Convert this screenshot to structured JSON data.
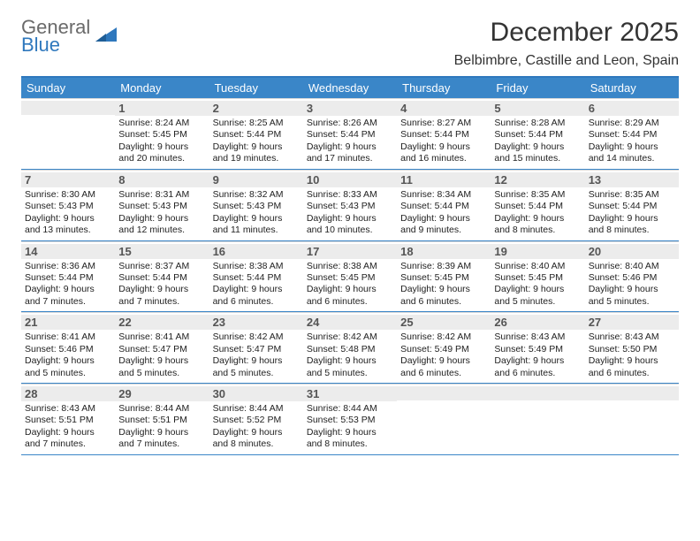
{
  "brand": {
    "line1": "General",
    "line2": "Blue"
  },
  "title": "December 2025",
  "location": "Belbimbre, Castille and Leon, Spain",
  "colors": {
    "header_bar": "#3a86c8",
    "top_border": "#2f78bd",
    "daynum_bg": "#ececec",
    "week_border": "#3a86c8",
    "cell_border": "#d9d9d9",
    "text": "#222222",
    "muted": "#555555",
    "white": "#ffffff"
  },
  "days_of_week": [
    "Sunday",
    "Monday",
    "Tuesday",
    "Wednesday",
    "Thursday",
    "Friday",
    "Saturday"
  ],
  "weeks": [
    [
      {
        "n": "",
        "sr": "",
        "ss": "",
        "dl": ""
      },
      {
        "n": "1",
        "sr": "Sunrise: 8:24 AM",
        "ss": "Sunset: 5:45 PM",
        "dl": "Daylight: 9 hours and 20 minutes."
      },
      {
        "n": "2",
        "sr": "Sunrise: 8:25 AM",
        "ss": "Sunset: 5:44 PM",
        "dl": "Daylight: 9 hours and 19 minutes."
      },
      {
        "n": "3",
        "sr": "Sunrise: 8:26 AM",
        "ss": "Sunset: 5:44 PM",
        "dl": "Daylight: 9 hours and 17 minutes."
      },
      {
        "n": "4",
        "sr": "Sunrise: 8:27 AM",
        "ss": "Sunset: 5:44 PM",
        "dl": "Daylight: 9 hours and 16 minutes."
      },
      {
        "n": "5",
        "sr": "Sunrise: 8:28 AM",
        "ss": "Sunset: 5:44 PM",
        "dl": "Daylight: 9 hours and 15 minutes."
      },
      {
        "n": "6",
        "sr": "Sunrise: 8:29 AM",
        "ss": "Sunset: 5:44 PM",
        "dl": "Daylight: 9 hours and 14 minutes."
      }
    ],
    [
      {
        "n": "7",
        "sr": "Sunrise: 8:30 AM",
        "ss": "Sunset: 5:43 PM",
        "dl": "Daylight: 9 hours and 13 minutes."
      },
      {
        "n": "8",
        "sr": "Sunrise: 8:31 AM",
        "ss": "Sunset: 5:43 PM",
        "dl": "Daylight: 9 hours and 12 minutes."
      },
      {
        "n": "9",
        "sr": "Sunrise: 8:32 AM",
        "ss": "Sunset: 5:43 PM",
        "dl": "Daylight: 9 hours and 11 minutes."
      },
      {
        "n": "10",
        "sr": "Sunrise: 8:33 AM",
        "ss": "Sunset: 5:43 PM",
        "dl": "Daylight: 9 hours and 10 minutes."
      },
      {
        "n": "11",
        "sr": "Sunrise: 8:34 AM",
        "ss": "Sunset: 5:44 PM",
        "dl": "Daylight: 9 hours and 9 minutes."
      },
      {
        "n": "12",
        "sr": "Sunrise: 8:35 AM",
        "ss": "Sunset: 5:44 PM",
        "dl": "Daylight: 9 hours and 8 minutes."
      },
      {
        "n": "13",
        "sr": "Sunrise: 8:35 AM",
        "ss": "Sunset: 5:44 PM",
        "dl": "Daylight: 9 hours and 8 minutes."
      }
    ],
    [
      {
        "n": "14",
        "sr": "Sunrise: 8:36 AM",
        "ss": "Sunset: 5:44 PM",
        "dl": "Daylight: 9 hours and 7 minutes."
      },
      {
        "n": "15",
        "sr": "Sunrise: 8:37 AM",
        "ss": "Sunset: 5:44 PM",
        "dl": "Daylight: 9 hours and 7 minutes."
      },
      {
        "n": "16",
        "sr": "Sunrise: 8:38 AM",
        "ss": "Sunset: 5:44 PM",
        "dl": "Daylight: 9 hours and 6 minutes."
      },
      {
        "n": "17",
        "sr": "Sunrise: 8:38 AM",
        "ss": "Sunset: 5:45 PM",
        "dl": "Daylight: 9 hours and 6 minutes."
      },
      {
        "n": "18",
        "sr": "Sunrise: 8:39 AM",
        "ss": "Sunset: 5:45 PM",
        "dl": "Daylight: 9 hours and 6 minutes."
      },
      {
        "n": "19",
        "sr": "Sunrise: 8:40 AM",
        "ss": "Sunset: 5:45 PM",
        "dl": "Daylight: 9 hours and 5 minutes."
      },
      {
        "n": "20",
        "sr": "Sunrise: 8:40 AM",
        "ss": "Sunset: 5:46 PM",
        "dl": "Daylight: 9 hours and 5 minutes."
      }
    ],
    [
      {
        "n": "21",
        "sr": "Sunrise: 8:41 AM",
        "ss": "Sunset: 5:46 PM",
        "dl": "Daylight: 9 hours and 5 minutes."
      },
      {
        "n": "22",
        "sr": "Sunrise: 8:41 AM",
        "ss": "Sunset: 5:47 PM",
        "dl": "Daylight: 9 hours and 5 minutes."
      },
      {
        "n": "23",
        "sr": "Sunrise: 8:42 AM",
        "ss": "Sunset: 5:47 PM",
        "dl": "Daylight: 9 hours and 5 minutes."
      },
      {
        "n": "24",
        "sr": "Sunrise: 8:42 AM",
        "ss": "Sunset: 5:48 PM",
        "dl": "Daylight: 9 hours and 5 minutes."
      },
      {
        "n": "25",
        "sr": "Sunrise: 8:42 AM",
        "ss": "Sunset: 5:49 PM",
        "dl": "Daylight: 9 hours and 6 minutes."
      },
      {
        "n": "26",
        "sr": "Sunrise: 8:43 AM",
        "ss": "Sunset: 5:49 PM",
        "dl": "Daylight: 9 hours and 6 minutes."
      },
      {
        "n": "27",
        "sr": "Sunrise: 8:43 AM",
        "ss": "Sunset: 5:50 PM",
        "dl": "Daylight: 9 hours and 6 minutes."
      }
    ],
    [
      {
        "n": "28",
        "sr": "Sunrise: 8:43 AM",
        "ss": "Sunset: 5:51 PM",
        "dl": "Daylight: 9 hours and 7 minutes."
      },
      {
        "n": "29",
        "sr": "Sunrise: 8:44 AM",
        "ss": "Sunset: 5:51 PM",
        "dl": "Daylight: 9 hours and 7 minutes."
      },
      {
        "n": "30",
        "sr": "Sunrise: 8:44 AM",
        "ss": "Sunset: 5:52 PM",
        "dl": "Daylight: 9 hours and 8 minutes."
      },
      {
        "n": "31",
        "sr": "Sunrise: 8:44 AM",
        "ss": "Sunset: 5:53 PM",
        "dl": "Daylight: 9 hours and 8 minutes."
      },
      {
        "n": "",
        "sr": "",
        "ss": "",
        "dl": ""
      },
      {
        "n": "",
        "sr": "",
        "ss": "",
        "dl": ""
      },
      {
        "n": "",
        "sr": "",
        "ss": "",
        "dl": ""
      }
    ]
  ]
}
